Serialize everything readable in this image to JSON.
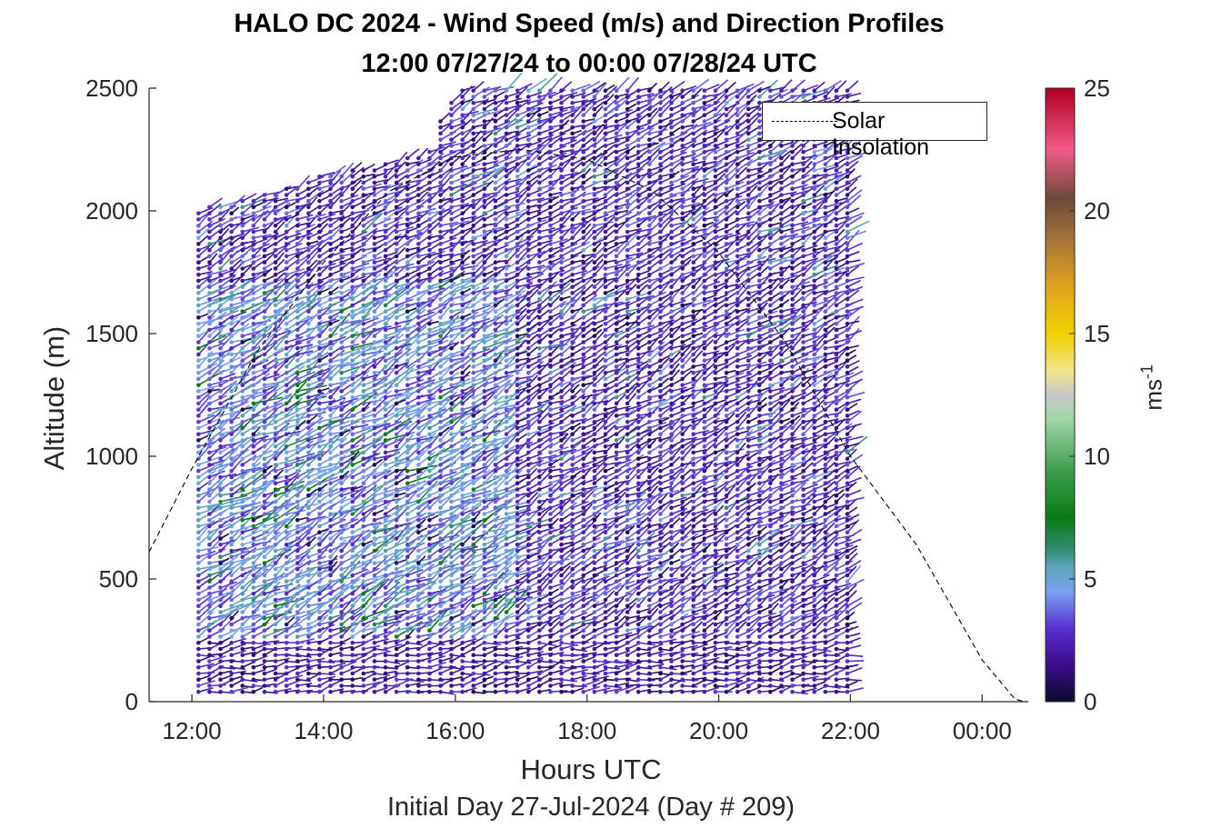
{
  "title_line1": "HALO DC 2024 - Wind Speed (m/s) and Direction Profiles",
  "title_line2": "12:00 07/27/24 to 00:00 07/28/24  UTC",
  "xlabel": "Hours UTC",
  "subtitle": "Initial Day 27-Jul-2024 (Day # 209)",
  "ylabel": "Altitude (m)",
  "colorbar_label": "ms",
  "colorbar_label_exponent": "-1",
  "legend_label": "Solar Insolation",
  "chart_data": {
    "type": "scatter",
    "title": "HALO DC 2024 - Wind Speed (m/s) and Direction Profiles",
    "xlabel": "Hours UTC",
    "ylabel": "Altitude (m)",
    "x_range_hours": [
      11.35,
      24.7
    ],
    "ylim": [
      0,
      2500
    ],
    "x_ticks": [
      {
        "value": 12,
        "label": "12:00"
      },
      {
        "value": 14,
        "label": "14:00"
      },
      {
        "value": 16,
        "label": "16:00"
      },
      {
        "value": 18,
        "label": "18:00"
      },
      {
        "value": 20,
        "label": "20:00"
      },
      {
        "value": 22,
        "label": "22:00"
      },
      {
        "value": 24,
        "label": "00:00"
      }
    ],
    "y_ticks": [
      0,
      500,
      1000,
      1500,
      2000,
      2500
    ],
    "colorbar": {
      "range": [
        0,
        25
      ],
      "ticks": [
        0,
        5,
        10,
        15,
        20,
        25
      ],
      "units": "ms-1",
      "stops": [
        {
          "v": 0,
          "c": "#0b0b2e"
        },
        {
          "v": 1.5,
          "c": "#3a0f8a"
        },
        {
          "v": 3,
          "c": "#5a2fd0"
        },
        {
          "v": 4.5,
          "c": "#7aa3f2"
        },
        {
          "v": 5.5,
          "c": "#5aa3b8"
        },
        {
          "v": 6.3,
          "c": "#2f8a6a"
        },
        {
          "v": 7.5,
          "c": "#0a7a14"
        },
        {
          "v": 9.5,
          "c": "#40a050"
        },
        {
          "v": 11.5,
          "c": "#9ed6a8"
        },
        {
          "v": 12.5,
          "c": "#c8c8c8"
        },
        {
          "v": 13.5,
          "c": "#f2e68a"
        },
        {
          "v": 15,
          "c": "#f0d000"
        },
        {
          "v": 17,
          "c": "#e0a020"
        },
        {
          "v": 19,
          "c": "#a0703a"
        },
        {
          "v": 20.5,
          "c": "#6a4a3a"
        },
        {
          "v": 22.5,
          "c": "#f25a8a"
        },
        {
          "v": 25,
          "c": "#b00020"
        }
      ]
    },
    "profiles": {
      "start_hour": 12.1,
      "end_hour": 22.1,
      "interval_hours": 0.167,
      "min_altitude": 40,
      "altitude_step": 25,
      "top_altitude_by_hour": [
        {
          "hour": 12.1,
          "alt": 2010
        },
        {
          "hour": 13.0,
          "alt": 2060
        },
        {
          "hour": 14.0,
          "alt": 2150
        },
        {
          "hour": 15.0,
          "alt": 2200
        },
        {
          "hour": 15.7,
          "alt": 2260
        },
        {
          "hour": 15.8,
          "alt": 2420
        },
        {
          "hour": 16.1,
          "alt": 2500
        },
        {
          "hour": 22.1,
          "alt": 2500
        }
      ],
      "typical_speed_ms": [
        0.5,
        7.5
      ],
      "max_speed_ms": 18
    },
    "series": [
      {
        "name": "Solar Insolation",
        "style": "dashed",
        "x": [
          11.35,
          12.0,
          13.0,
          14.0,
          15.0,
          16.0,
          17.0,
          18.0,
          19.0,
          20.0,
          21.0,
          22.0,
          23.0,
          24.0,
          24.5,
          24.65
        ],
        "y": [
          610,
          950,
          1430,
          1790,
          2080,
          2220,
          2250,
          2210,
          2080,
          1830,
          1470,
          1000,
          640,
          170,
          10,
          0
        ]
      }
    ]
  }
}
